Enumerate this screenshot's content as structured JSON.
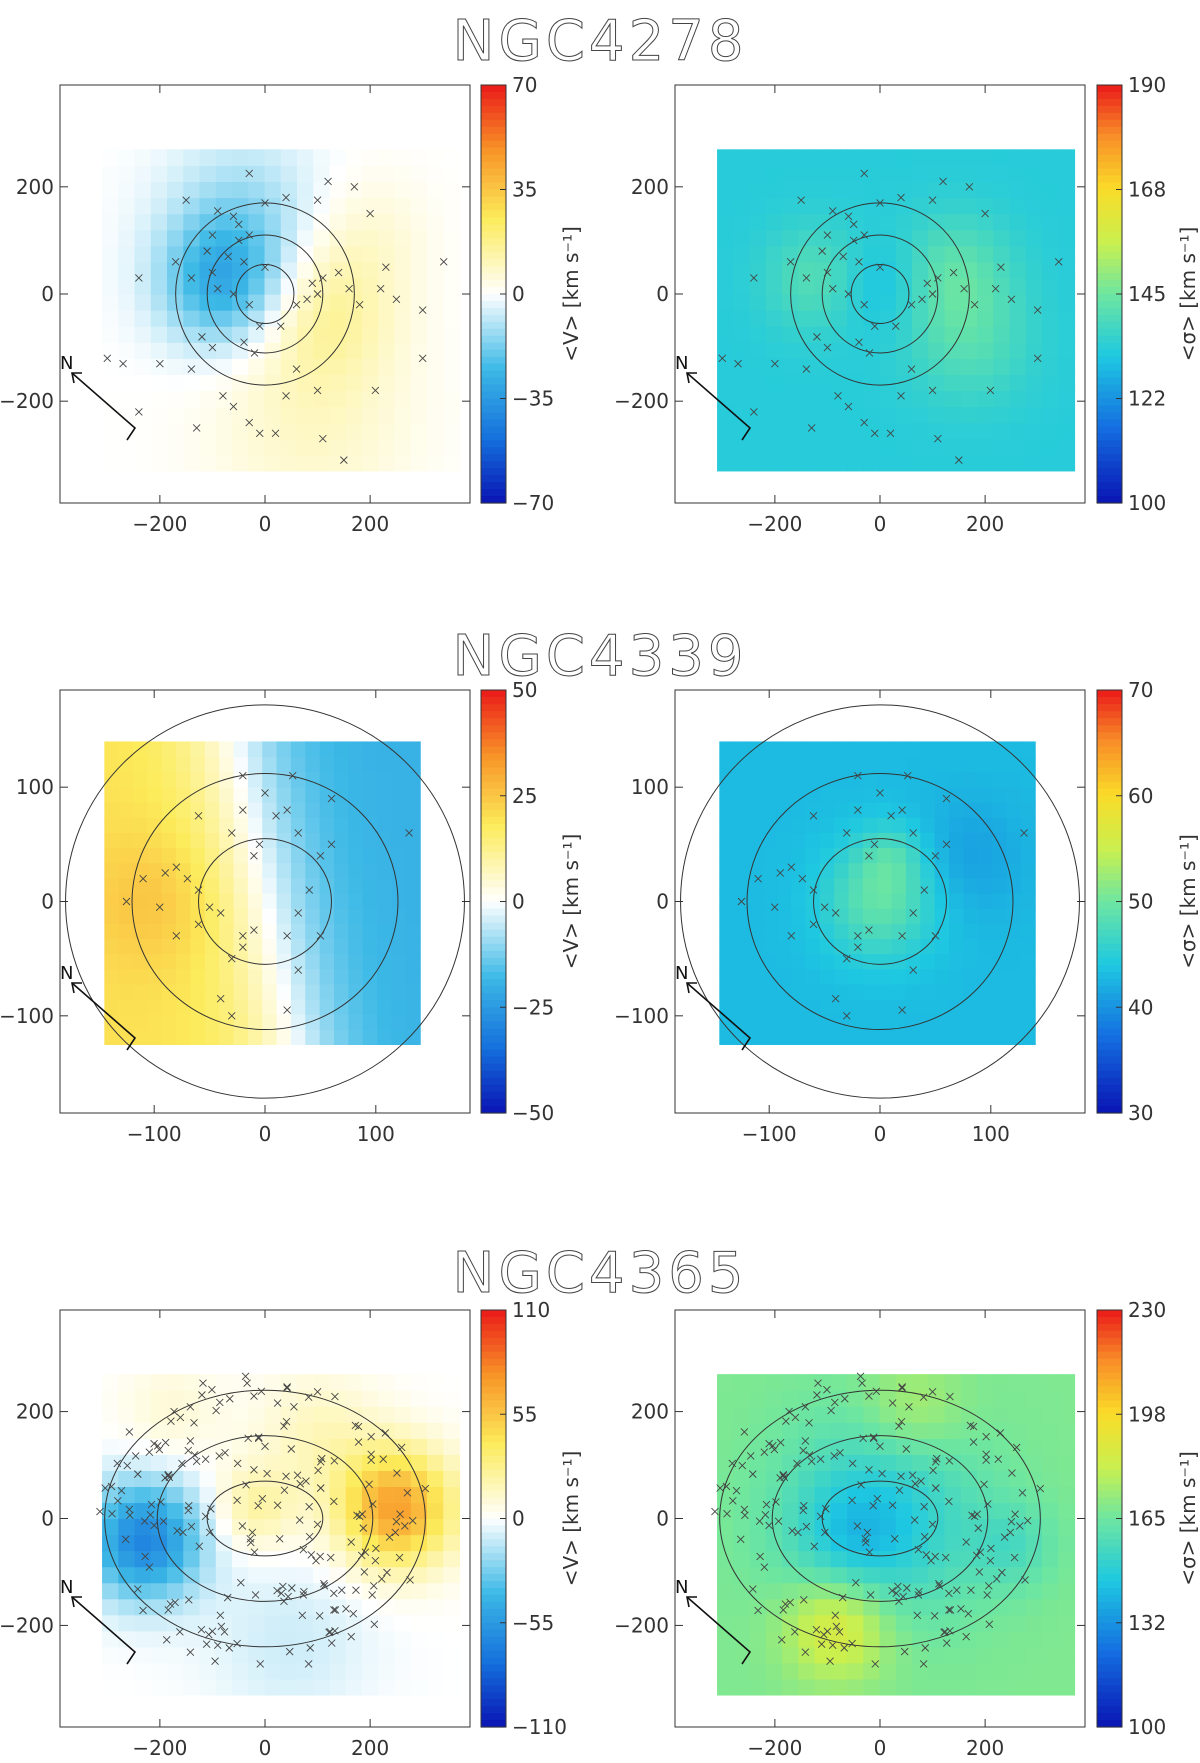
{
  "figure": "kinematic maps",
  "chart_data": [
    {
      "title": "NGC4278",
      "type": "heatmap",
      "x_ticks": [
        -200,
        0,
        200
      ],
      "y_ticks": [
        -200,
        0,
        200
      ],
      "axis_range": [
        -390,
        390
      ],
      "ellipses": [
        [
          55,
          55
        ],
        [
          110,
          110
        ],
        [
          170,
          170
        ]
      ],
      "grid_extent": {
        "x": [
          -310,
          370
        ],
        "y": [
          -330,
          270
        ]
      },
      "panels": [
        {
          "name": "velocity",
          "colorbar_label": "<V> [km s⁻¹]",
          "colorbar_ticks": [
            "70",
            "35",
            "0",
            "−35",
            "−70"
          ],
          "range": [
            -70,
            70
          ],
          "cmap": "diverging",
          "blobs": [
            {
              "x": -80,
              "y": 20,
              "r": 120,
              "v": -28
            },
            {
              "x": -40,
              "y": 150,
              "r": 150,
              "v": -12
            },
            {
              "x": 110,
              "y": -30,
              "r": 140,
              "v": 14
            },
            {
              "x": 90,
              "y": -250,
              "r": 200,
              "v": 8
            },
            {
              "x": 200,
              "y": 120,
              "r": 120,
              "v": 5
            }
          ]
        },
        {
          "name": "dispersion",
          "colorbar_label": "<σ> [km s⁻¹]",
          "colorbar_ticks": [
            "190",
            "168",
            "145",
            "122",
            "100"
          ],
          "range": [
            100,
            190
          ],
          "cmap": "sequential",
          "base": 133,
          "blobs": [
            {
              "x": -120,
              "y": 30,
              "r": 100,
              "v": 8
            },
            {
              "x": 140,
              "y": 40,
              "r": 110,
              "v": 9
            },
            {
              "x": 170,
              "y": -90,
              "r": 120,
              "v": 7
            },
            {
              "x": 0,
              "y": 20,
              "r": 90,
              "v": -5
            }
          ]
        }
      ],
      "compass": {
        "label": "N",
        "angle": 225
      },
      "points": [
        [
          -30,
          225
        ],
        [
          -150,
          175
        ],
        [
          -90,
          155
        ],
        [
          -60,
          145
        ],
        [
          -50,
          130
        ],
        [
          -100,
          110
        ],
        [
          -50,
          100
        ],
        [
          -30,
          110
        ],
        [
          0,
          170
        ],
        [
          40,
          180
        ],
        [
          120,
          210
        ],
        [
          170,
          200
        ],
        [
          200,
          150
        ],
        [
          100,
          175
        ],
        [
          -110,
          80
        ],
        [
          -170,
          60
        ],
        [
          -240,
          30
        ],
        [
          -70,
          70
        ],
        [
          -40,
          60
        ],
        [
          0,
          50
        ],
        [
          -100,
          40
        ],
        [
          -140,
          30
        ],
        [
          -90,
          10
        ],
        [
          -60,
          0
        ],
        [
          -30,
          -20
        ],
        [
          -10,
          -60
        ],
        [
          -40,
          -90
        ],
        [
          -20,
          -110
        ],
        [
          30,
          -60
        ],
        [
          60,
          -20
        ],
        [
          80,
          -10
        ],
        [
          100,
          0
        ],
        [
          90,
          20
        ],
        [
          110,
          30
        ],
        [
          140,
          40
        ],
        [
          160,
          10
        ],
        [
          180,
          -20
        ],
        [
          220,
          10
        ],
        [
          250,
          -10
        ],
        [
          230,
          50
        ],
        [
          300,
          -30
        ],
        [
          340,
          60
        ],
        [
          -120,
          -80
        ],
        [
          -100,
          -100
        ],
        [
          -140,
          -140
        ],
        [
          -200,
          -130
        ],
        [
          -300,
          -120
        ],
        [
          -270,
          -130
        ],
        [
          -240,
          -220
        ],
        [
          -80,
          -190
        ],
        [
          -60,
          -210
        ],
        [
          -30,
          -240
        ],
        [
          40,
          -190
        ],
        [
          60,
          -140
        ],
        [
          100,
          -180
        ],
        [
          110,
          -270
        ],
        [
          150,
          -310
        ],
        [
          20,
          -260
        ],
        [
          210,
          -180
        ],
        [
          300,
          -120
        ],
        [
          -130,
          -250
        ],
        [
          -10,
          -260
        ]
      ]
    },
    {
      "title": "NGC4339",
      "type": "heatmap",
      "x_ticks": [
        -100,
        0,
        100
      ],
      "y_ticks": [
        -100,
        0,
        100
      ],
      "axis_range": [
        -185,
        185
      ],
      "ellipses": [
        [
          60,
          55
        ],
        [
          120,
          112
        ],
        [
          180,
          172
        ]
      ],
      "grid_extent": {
        "x": [
          -145,
          140
        ],
        "y": [
          -125,
          140
        ]
      },
      "panels": [
        {
          "name": "velocity",
          "colorbar_label": "<V> [km s⁻¹]",
          "colorbar_ticks": [
            "50",
            "25",
            "0",
            "−25",
            "−50"
          ],
          "range": [
            -50,
            50
          ],
          "cmap": "diverging",
          "gradient": {
            "vmax": 20,
            "scale": 60,
            "ycoef": 0.2
          },
          "blobs": [
            {
              "x": -100,
              "y": 0,
              "r": 60,
              "v": 6
            }
          ]
        },
        {
          "name": "dispersion",
          "colorbar_label": "<σ> [km s⁻¹]",
          "colorbar_ticks": [
            "70",
            "60",
            "50",
            "40",
            "30"
          ],
          "range": [
            30,
            70
          ],
          "cmap": "sequential",
          "base": 43,
          "blobs": [
            {
              "x": 0,
              "y": 0,
              "r": 50,
              "v": 6
            },
            {
              "x": 10,
              "y": 40,
              "r": 30,
              "v": 3
            },
            {
              "x": 80,
              "y": 40,
              "r": 50,
              "v": -2
            }
          ]
        }
      ],
      "compass": {
        "label": "N",
        "angle": 200
      },
      "points": [
        [
          -20,
          110
        ],
        [
          25,
          110
        ],
        [
          60,
          90
        ],
        [
          0,
          95
        ],
        [
          10,
          75
        ],
        [
          20,
          80
        ],
        [
          -60,
          75
        ],
        [
          -30,
          60
        ],
        [
          -5,
          50
        ],
        [
          -10,
          40
        ],
        [
          -80,
          30
        ],
        [
          -90,
          25
        ],
        [
          -110,
          20
        ],
        [
          -70,
          20
        ],
        [
          -60,
          10
        ],
        [
          -125,
          0
        ],
        [
          -95,
          -5
        ],
        [
          -50,
          -5
        ],
        [
          -80,
          -30
        ],
        [
          -60,
          -20
        ],
        [
          -40,
          -10
        ],
        [
          -30,
          -50
        ],
        [
          -20,
          -40
        ],
        [
          20,
          -30
        ],
        [
          30,
          -10
        ],
        [
          40,
          10
        ],
        [
          50,
          40
        ],
        [
          30,
          60
        ],
        [
          -20,
          -30
        ],
        [
          -10,
          -25
        ],
        [
          130,
          60
        ],
        [
          50,
          -30
        ],
        [
          30,
          -60
        ],
        [
          -40,
          -85
        ],
        [
          -30,
          -100
        ],
        [
          20,
          -95
        ],
        [
          60,
          50
        ],
        [
          -20,
          80
        ]
      ]
    },
    {
      "title": "NGC4365",
      "type": "heatmap",
      "x_ticks": [
        -200,
        0,
        200
      ],
      "y_ticks": [
        -200,
        0,
        200
      ],
      "axis_range": [
        -390,
        390
      ],
      "ellipses": [
        [
          110,
          70
        ],
        [
          205,
          155
        ],
        [
          305,
          240
        ]
      ],
      "grid_extent": {
        "x": [
          -310,
          370
        ],
        "y": [
          -330,
          270
        ]
      },
      "panels": [
        {
          "name": "velocity",
          "colorbar_label": "<V> [km s⁻¹]",
          "colorbar_ticks": [
            "110",
            "55",
            "0",
            "−55",
            "−110"
          ],
          "range": [
            -110,
            110
          ],
          "cmap": "diverging",
          "blobs": [
            {
              "x": -230,
              "y": -40,
              "r": 110,
              "v": -65
            },
            {
              "x": 250,
              "y": 20,
              "r": 110,
              "v": 70
            },
            {
              "x": -20,
              "y": 20,
              "r": 80,
              "v": 22
            },
            {
              "x": 100,
              "y": 160,
              "r": 120,
              "v": 15
            },
            {
              "x": -180,
              "y": 200,
              "r": 100,
              "v": 10
            },
            {
              "x": 50,
              "y": -230,
              "r": 160,
              "v": -10
            }
          ]
        },
        {
          "name": "dispersion",
          "colorbar_label": "<σ> [km s⁻¹]",
          "colorbar_ticks": [
            "230",
            "198",
            "165",
            "132",
            "100"
          ],
          "range": [
            100,
            230
          ],
          "cmap": "sequential",
          "base": 168,
          "blobs": [
            {
              "x": 0,
              "y": 0,
              "r": 180,
              "v": -22
            },
            {
              "x": -60,
              "y": -40,
              "r": 100,
              "v": -8
            },
            {
              "x": -80,
              "y": -200,
              "r": 100,
              "v": 22
            },
            {
              "x": 60,
              "y": 200,
              "r": 100,
              "v": 10
            },
            {
              "x": 250,
              "y": -50,
              "r": 80,
              "v": -10
            }
          ]
        }
      ],
      "compass": {
        "label": "N",
        "angle": 225
      },
      "points": []
    }
  ]
}
